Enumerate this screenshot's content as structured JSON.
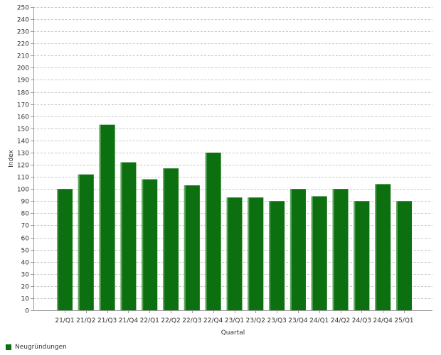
{
  "chart_data": {
    "type": "bar",
    "categories": [
      "21/Q1",
      "21/Q2",
      "21/Q3",
      "21/Q4",
      "22/Q1",
      "22/Q2",
      "22/Q3",
      "22/Q4",
      "23/Q1",
      "23/Q2",
      "23/Q3",
      "23/Q4",
      "24/Q1",
      "24/Q2",
      "24/Q3",
      "24/Q4",
      "25/Q1"
    ],
    "series": [
      {
        "name": "Neugründungen",
        "values": [
          100,
          112,
          153,
          122,
          108,
          117,
          103,
          130,
          93,
          93,
          90,
          100,
          94,
          100,
          90,
          104,
          90
        ]
      }
    ],
    "xlabel": "Quartal",
    "ylabel": "Index",
    "ylim": [
      0,
      250
    ],
    "ytick_step": 10,
    "grid": true,
    "legend_position": "bottom-left",
    "colors": {
      "bar": "#0d7010",
      "bar_highlight": "#5fa85f",
      "grid": "#c8c8c8",
      "axis": "#999999"
    }
  },
  "legend": {
    "label": "Neugründungen"
  }
}
